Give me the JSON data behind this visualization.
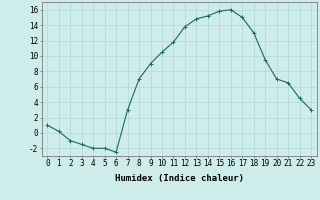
{
  "x": [
    0,
    1,
    2,
    3,
    4,
    5,
    6,
    7,
    8,
    9,
    10,
    11,
    12,
    13,
    14,
    15,
    16,
    17,
    18,
    19,
    20,
    21,
    22,
    23
  ],
  "y": [
    1,
    0.2,
    -1,
    -1.5,
    -2,
    -2,
    -2.5,
    3,
    7,
    9,
    10.5,
    11.8,
    13.8,
    14.8,
    15.2,
    15.8,
    16,
    15,
    13,
    9.5,
    7,
    6.5,
    4.5,
    3
  ],
  "line_color": "#1a6b5a",
  "marker": "+",
  "marker_size": 3,
  "bg_color": "#ceecea",
  "grid_color": "#aed8d4",
  "xlabel": "Humidex (Indice chaleur)",
  "xlim": [
    -0.5,
    23.5
  ],
  "ylim": [
    -3,
    17
  ],
  "yticks": [
    -2,
    0,
    2,
    4,
    6,
    8,
    10,
    12,
    14,
    16
  ],
  "xticks": [
    0,
    1,
    2,
    3,
    4,
    5,
    6,
    7,
    8,
    9,
    10,
    11,
    12,
    13,
    14,
    15,
    16,
    17,
    18,
    19,
    20,
    21,
    22,
    23
  ],
  "xlabel_fontsize": 6.5,
  "tick_fontsize": 5.5,
  "linewidth": 0.8,
  "markeredgewidth": 0.7
}
